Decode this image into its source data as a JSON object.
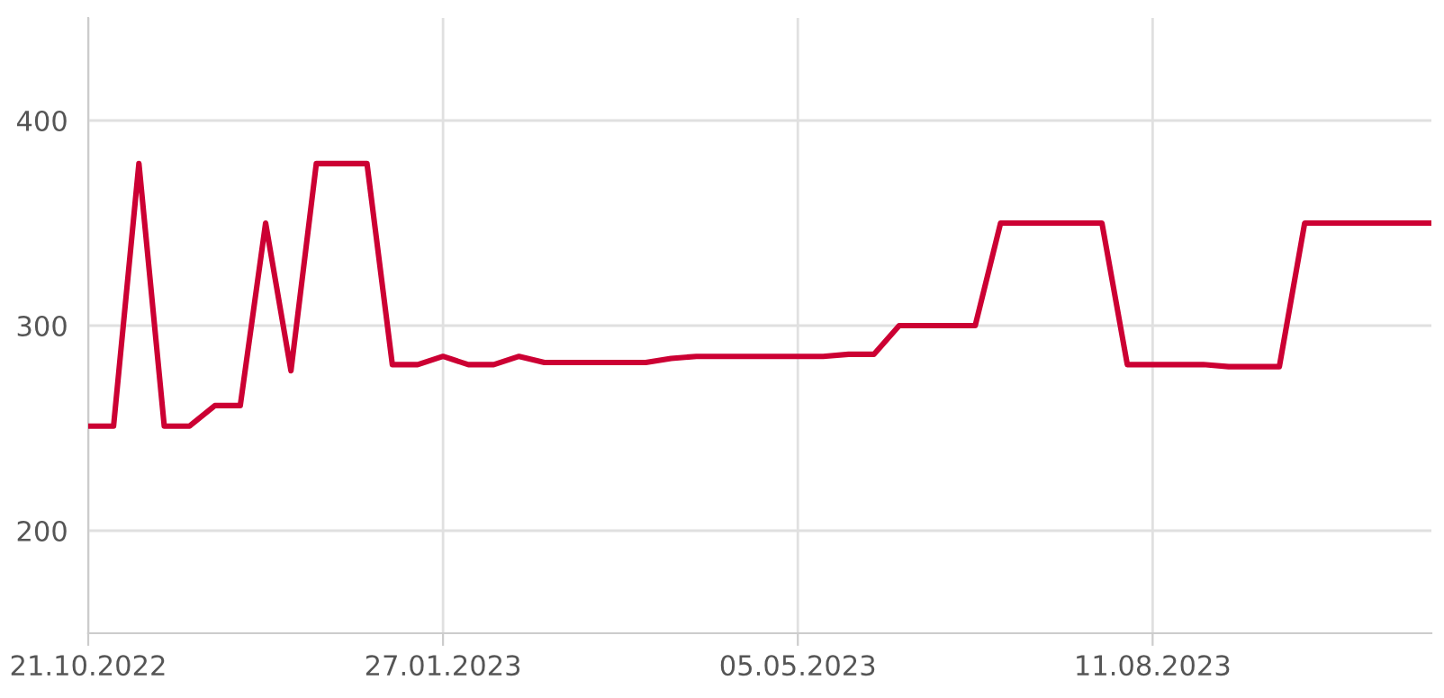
{
  "chart_data": {
    "type": "line",
    "xlim": [
      "2022-10-21",
      "2023-10-27"
    ],
    "ylim": [
      150,
      450
    ],
    "xticks": [
      {
        "value": "2022-10-21",
        "label": "21.10.2022"
      },
      {
        "value": "2023-01-27",
        "label": "27.01.2023"
      },
      {
        "value": "2023-05-05",
        "label": "05.05.2023"
      },
      {
        "value": "2023-08-11",
        "label": "11.08.2023"
      }
    ],
    "yticks": [
      200,
      300,
      400
    ],
    "grid": true,
    "marker": "none",
    "line_style": "solid",
    "x": [
      "2022-10-21",
      "2022-10-28",
      "2022-11-04",
      "2022-11-11",
      "2022-11-18",
      "2022-11-25",
      "2022-12-02",
      "2022-12-09",
      "2022-12-16",
      "2022-12-23",
      "2022-12-30",
      "2023-01-06",
      "2023-01-13",
      "2023-01-20",
      "2023-01-27",
      "2023-02-03",
      "2023-02-10",
      "2023-02-17",
      "2023-02-24",
      "2023-03-03",
      "2023-03-10",
      "2023-03-17",
      "2023-03-24",
      "2023-03-31",
      "2023-04-07",
      "2023-04-14",
      "2023-04-21",
      "2023-04-28",
      "2023-05-05",
      "2023-05-12",
      "2023-05-19",
      "2023-05-26",
      "2023-06-02",
      "2023-06-09",
      "2023-06-16",
      "2023-06-23",
      "2023-06-30",
      "2023-07-07",
      "2023-07-14",
      "2023-07-21",
      "2023-07-28",
      "2023-08-04",
      "2023-08-11",
      "2023-08-18",
      "2023-08-25",
      "2023-09-01",
      "2023-09-08",
      "2023-09-15",
      "2023-09-22",
      "2023-09-29",
      "2023-10-06",
      "2023-10-13",
      "2023-10-20",
      "2023-10-27"
    ],
    "series": [
      {
        "color": "#cc0033",
        "values": [
          251,
          251,
          379,
          251,
          251,
          261,
          261,
          350,
          278,
          379,
          379,
          379,
          281,
          281,
          285,
          281,
          281,
          285,
          282,
          282,
          282,
          282,
          282,
          284,
          285,
          285,
          285,
          285,
          285,
          285,
          286,
          286,
          300,
          300,
          300,
          300,
          350,
          350,
          350,
          350,
          350,
          281,
          281,
          281,
          281,
          280,
          280,
          280,
          350,
          350,
          350,
          350,
          350,
          350
        ]
      }
    ]
  }
}
